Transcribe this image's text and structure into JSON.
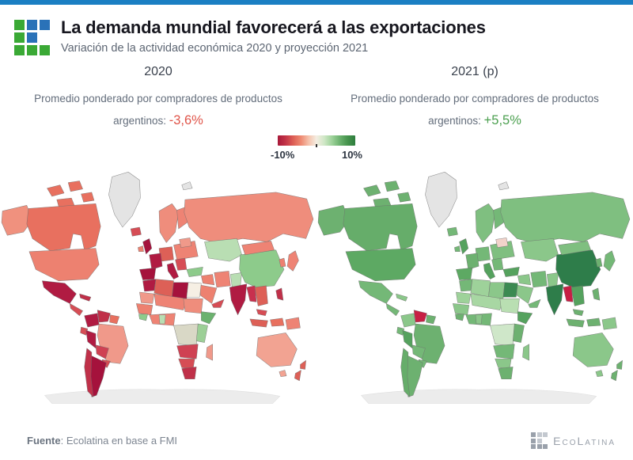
{
  "header": {
    "title": "La demanda mundial favorecerá a las exportaciones",
    "subtitle": "Variación de la actividad económica 2020 y proyección 2021",
    "logo_colors": {
      "green": "#3aa935",
      "blue": "#2a72b8"
    },
    "logo_pattern": [
      [
        "g",
        "b",
        "b"
      ],
      [
        "g",
        "b",
        ""
      ],
      [
        "g",
        "g",
        "g"
      ]
    ]
  },
  "columns": {
    "left": {
      "year_label": "2020",
      "caption_line1": "Promedio ponderado por compradores de productos",
      "caption_prefix": "argentinos: ",
      "value": "-3,6%",
      "value_color": "#e0554a"
    },
    "right": {
      "year_label": "2021 (p)",
      "caption_line1": "Promedio ponderado por compradores de productos",
      "caption_prefix": "argentinos: ",
      "value": "+5,5%",
      "value_color": "#4ca050"
    }
  },
  "legend": {
    "min_label": "-10%",
    "max_label": "10%",
    "gradient_stops": [
      "#a81939",
      "#c23347",
      "#dd5f55",
      "#ee8a72",
      "#f5c3ad",
      "#f4ede2",
      "#cfe7c6",
      "#9ed29a",
      "#6cb26f",
      "#46944d",
      "#2e7d3e"
    ]
  },
  "chart_data": {
    "type": "choropleth",
    "subject": "Variación de la actividad económica (%), mapa mundial",
    "legend": {
      "range_pct": [
        -10,
        10
      ],
      "labels": [
        "-10%",
        "10%"
      ],
      "no_data_color": "#e4e4e4"
    },
    "maps": [
      {
        "title": "2020",
        "summary_label": "Promedio ponderado por compradores de productos argentinos",
        "summary_value_pct": -3.6,
        "dominant_tone": "red (contracción)",
        "region_colors": {
          "antarctica": "#ececec",
          "greenland": "#e4e4e4",
          "svalbard": "#e4e4e4",
          "arch1": "#e8705f",
          "arch2": "#e8705f",
          "arch3": "#e8705f",
          "arch4": "#e8705f",
          "alaska": "#f0917e",
          "canada": "#e8705f",
          "usa": "#ed8170",
          "mexico": "#b01b42",
          "centralamerica": "#d64d55",
          "cuba": "#c03049",
          "colombia": "#b01b42",
          "venezuela": "#c03049",
          "guyanas": "#e8705f",
          "ecuador": "#d64d55",
          "peru": "#b01b42",
          "brazil": "#f0998a",
          "bolivia": "#cf4153",
          "paraguay": "#d64d55",
          "argentina": "#a5123c",
          "chile": "#c03049",
          "iceland": "#d64d55",
          "uk": "#a5123c",
          "ireland": "#ed8170",
          "scandinavia": "#ef8d7c",
          "finland": "#ee8374",
          "easteurope": "#ee8374",
          "belarus": "#f0998a",
          "germany": "#dd6057",
          "france": "#b01b42",
          "spain": "#a5123c",
          "italy": "#b01b42",
          "balkans": "#d64d55",
          "russia": "#ef8d7c",
          "kazakh": "#b9deb3",
          "turkey": "#8dcb8b",
          "syria_iraq": "#ed8170",
          "iran": "#ee8374",
          "saudi": "#ed8170",
          "yemen": "#d64d55",
          "afpak": "#b9deb3",
          "india": "#b01b42",
          "china": "#8dcb8b",
          "mongolia": "#ee8374",
          "korea": "#ed8170",
          "japan": "#ee8374",
          "myanmar": "#c8304e",
          "indochina": "#dd6057",
          "malaysia": "#d64d55",
          "philippines": "#c03049",
          "indonesia1": "#dd6057",
          "indonesia2": "#e8705f",
          "newguinea": "#ee8374",
          "morocco": "#b01b42",
          "algeria": "#dd6057",
          "libya": "#a5123c",
          "egypt": "#f6efe4",
          "mauritania": "#f0998a",
          "sahel": "#ee8374",
          "senegal": "#ed8170",
          "guinea": "#8dcb8b",
          "westcoast": "#ee8374",
          "ghana": "#b9deb3",
          "chad_sudan": "#ef8d7c",
          "ethiopia": "#6bb26e",
          "centralafrica": "#d9d8c6",
          "eastafrica": "#9ccf96",
          "angola": "#cf4153",
          "namibia": "#d64d55",
          "southafrica": "#c03049",
          "madagascar": "#f0998a",
          "australia": "#f2a392",
          "tasmania": "#f2a392",
          "nz1": "#dd6057",
          "nz2": "#dd6057"
        }
      },
      {
        "title": "2021 (p)",
        "summary_label": "Promedio ponderado por compradores de productos argentinos",
        "summary_value_pct": 5.5,
        "dominant_tone": "verde (recuperación)",
        "region_colors": {
          "antarctica": "#ececec",
          "greenland": "#e4e4e4",
          "svalbard": "#e4e4e4",
          "arch1": "#6db170",
          "arch2": "#6db170",
          "arch3": "#6db170",
          "arch4": "#6db170",
          "alaska": "#6db170",
          "canada": "#66ad6a",
          "usa": "#5da963",
          "mexico": "#74b877",
          "centralamerica": "#74b877",
          "cuba": "#8bc78a",
          "colombia": "#8bc78a",
          "venezuela": "#c71f44",
          "guyanas": "#6db170",
          "ecuador": "#74b877",
          "peru": "#55a25e",
          "brazil": "#6db170",
          "bolivia": "#74b877",
          "paraguay": "#74b877",
          "argentina": "#6db170",
          "chile": "#66ad6a",
          "iceland": "#74b877",
          "uk": "#55a25e",
          "ireland": "#74b877",
          "scandinavia": "#7fbf80",
          "finland": "#74b877",
          "easteurope": "#7fbf80",
          "belarus": "#f2d3ca",
          "germany": "#74b877",
          "france": "#6db170",
          "spain": "#5da963",
          "italy": "#55a25e",
          "balkans": "#74b877",
          "russia": "#7fbf80",
          "kazakh": "#8bc78a",
          "turkey": "#55a25e",
          "syria_iraq": "#8bc78a",
          "iran": "#74b877",
          "saudi": "#8bc78a",
          "yemen": "#74b877",
          "afpak": "#8bc78a",
          "india": "#2e7d4a",
          "china": "#2e7d4a",
          "mongolia": "#7fbf80",
          "korea": "#6db170",
          "japan": "#74b877",
          "myanmar": "#c71f44",
          "indochina": "#55a25e",
          "malaysia": "#6db170",
          "philippines": "#6db170",
          "indonesia1": "#6db170",
          "indonesia2": "#6db170",
          "newguinea": "#8bc78a",
          "morocco": "#74b877",
          "algeria": "#9ed29a",
          "libya": "#8bc78a",
          "egypt": "#3c8a52",
          "mauritania": "#9ed29a",
          "sahel": "#a8d7a3",
          "senegal": "#8bc78a",
          "guinea": "#6db170",
          "westcoast": "#74b877",
          "ghana": "#8bc78a",
          "chad_sudan": "#b9dfb2",
          "ethiopia": "#55a25e",
          "centralafrica": "#cfe7c9",
          "eastafrica": "#6db170",
          "angola": "#74b877",
          "namibia": "#8bc78a",
          "southafrica": "#6db170",
          "madagascar": "#8bc78a",
          "australia": "#8bc78a",
          "tasmania": "#8bc78a",
          "nz1": "#6db170",
          "nz2": "#6db170"
        }
      }
    ]
  },
  "footer": {
    "source_label": "Fuente",
    "source_rest": ": Ecolatina en base a FMI",
    "brand": "EcoLatina",
    "brand_logo_colors": {
      "dark": "#9aa1ab",
      "light": "#c3c8cf"
    }
  }
}
